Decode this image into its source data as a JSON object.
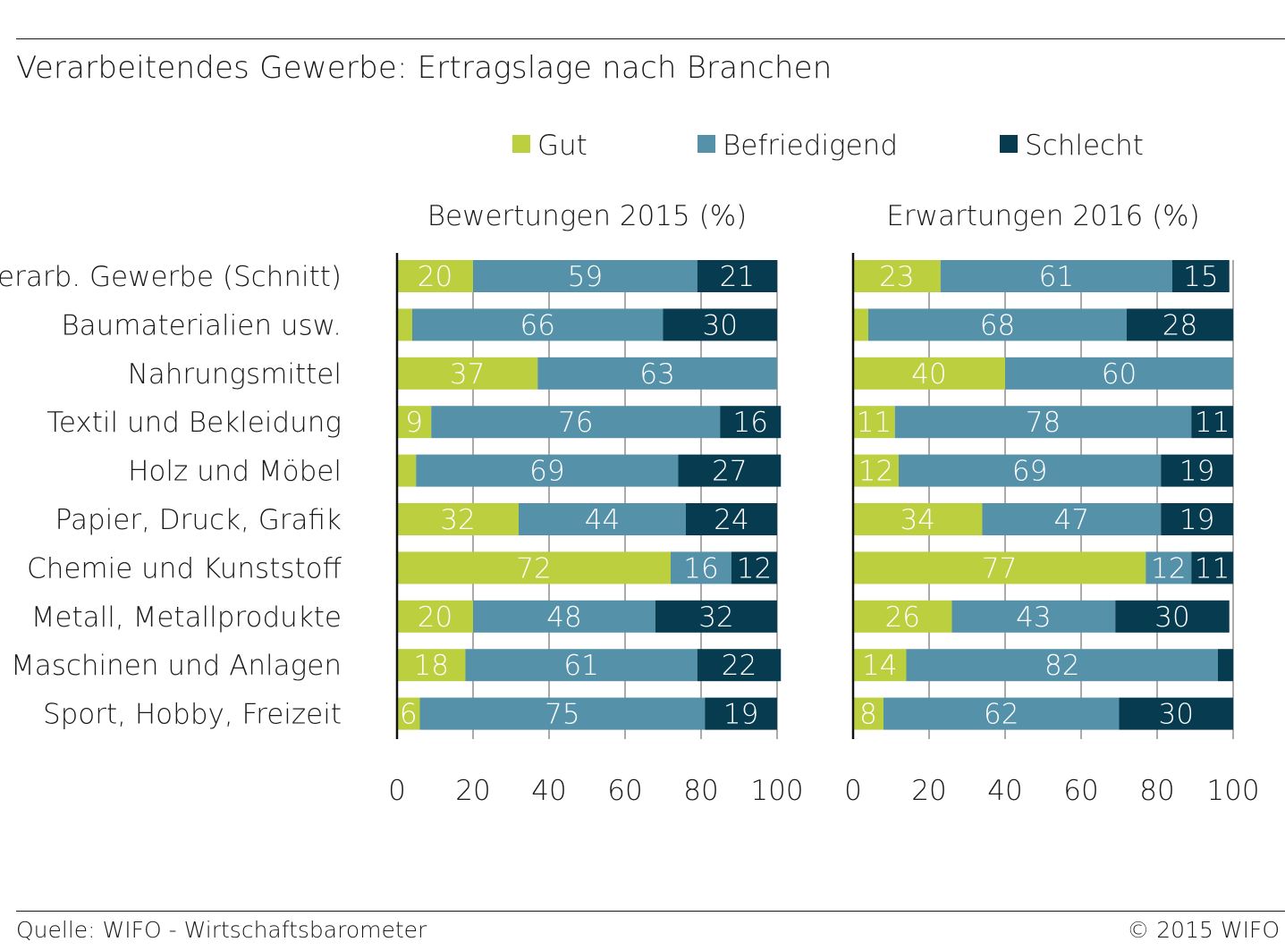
{
  "title": "Verarbeitendes Gewerbe: Ertragslage nach Branchen",
  "footer": {
    "source": "Quelle: WIFO - Wirtschaftsbarometer",
    "copyright": "© 2015 WIFO"
  },
  "colors": {
    "gut": "#bccf3f",
    "befriedigend": "#5592aa",
    "schlecht": "#073b50",
    "grid": "#555555",
    "text": "#1a1a1a"
  },
  "chart_data": {
    "type": "bar",
    "orientation": "horizontal",
    "stacked": true,
    "title": "Verarbeitendes Gewerbe: Ertragslage nach Branchen",
    "legend": {
      "position": "top",
      "entries": [
        "Gut",
        "Befriedigend",
        "Schlecht"
      ]
    },
    "xlim": [
      0,
      100
    ],
    "x_ticks": [
      "0",
      "20",
      "40",
      "60",
      "80",
      "100"
    ],
    "grid": true,
    "categories": [
      "Verarb. Gewerbe (Schnitt)",
      "Baumaterialien usw.",
      "Nahrungsmittel",
      "Textil und Bekleidung",
      "Holz und Möbel",
      "Papier, Druck, Grafik",
      "Chemie und Kunststoff",
      "Metall, Metallprodukte",
      "Maschinen und Anlagen",
      "Sport, Hobby, Freizeit"
    ],
    "panels": [
      {
        "title": "Bewertungen 2015 (%)",
        "series": [
          {
            "name": "Gut",
            "values": [
              20,
              4,
              37,
              9,
              5,
              32,
              72,
              20,
              18,
              6
            ]
          },
          {
            "name": "Befriedigend",
            "values": [
              59,
              66,
              63,
              76,
              69,
              44,
              16,
              48,
              61,
              75
            ]
          },
          {
            "name": "Schlecht",
            "values": [
              21,
              30,
              0,
              16,
              27,
              24,
              12,
              32,
              22,
              19
            ]
          }
        ],
        "labels": [
          [
            "20",
            "59",
            "21"
          ],
          [
            "",
            "66",
            "30"
          ],
          [
            "37",
            "63",
            ""
          ],
          [
            "9",
            "76",
            "16"
          ],
          [
            "",
            "69",
            "27"
          ],
          [
            "32",
            "44",
            "24"
          ],
          [
            "72",
            "16",
            "12"
          ],
          [
            "20",
            "48",
            "32"
          ],
          [
            "18",
            "61",
            "22"
          ],
          [
            "6",
            "75",
            "19"
          ]
        ]
      },
      {
        "title": "Erwartungen 2016 (%)",
        "series": [
          {
            "name": "Gut",
            "values": [
              23,
              4,
              40,
              11,
              12,
              34,
              77,
              26,
              14,
              8
            ]
          },
          {
            "name": "Befriedigend",
            "values": [
              61,
              68,
              60,
              78,
              69,
              47,
              12,
              43,
              82,
              62
            ]
          },
          {
            "name": "Schlecht",
            "values": [
              15,
              28,
              0,
              11,
              19,
              19,
              11,
              30,
              4,
              30
            ]
          }
        ],
        "labels": [
          [
            "23",
            "61",
            "15"
          ],
          [
            "",
            "68",
            "28"
          ],
          [
            "40",
            "60",
            ""
          ],
          [
            "11",
            "78",
            "11"
          ],
          [
            "12",
            "69",
            "19"
          ],
          [
            "34",
            "47",
            "19"
          ],
          [
            "77",
            "12",
            "11"
          ],
          [
            "26",
            "43",
            "30"
          ],
          [
            "14",
            "82",
            ""
          ],
          [
            "8",
            "62",
            "30"
          ]
        ]
      }
    ]
  }
}
